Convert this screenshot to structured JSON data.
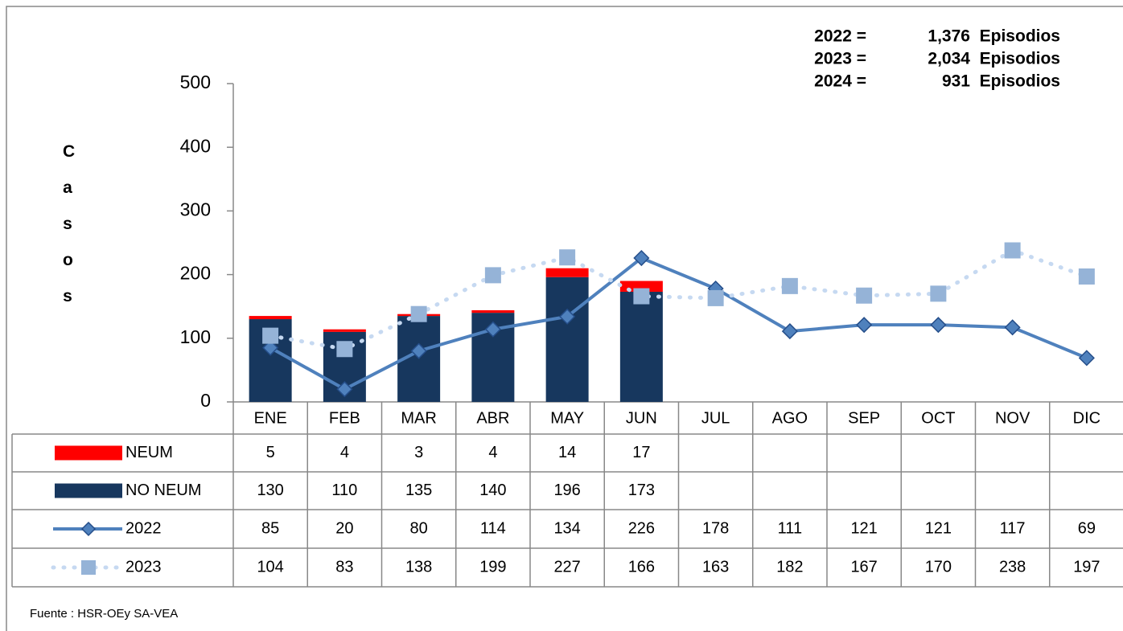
{
  "chart_data": {
    "type": "bar",
    "y_label": "Casos",
    "annotations": [
      {
        "year": "2022 =",
        "text": "1,376  Episodios"
      },
      {
        "year": "2023 =",
        "text": "2,034  Episodios"
      },
      {
        "year": "2024 =",
        "text": "931  Episodios"
      }
    ],
    "categories": [
      "ENE",
      "FEB",
      "MAR",
      "ABR",
      "MAY",
      "JUN",
      "JUL",
      "AGO",
      "SEP",
      "OCT",
      "NOV",
      "DIC"
    ],
    "series": [
      {
        "name": "NEUM",
        "type": "bar",
        "color": "#ff0000",
        "values": [
          5,
          4,
          3,
          4,
          14,
          17,
          null,
          null,
          null,
          null,
          null,
          null
        ]
      },
      {
        "name": "NO NEUM",
        "type": "bar",
        "color": "#17375e",
        "values": [
          130,
          110,
          135,
          140,
          196,
          173,
          null,
          null,
          null,
          null,
          null,
          null
        ]
      },
      {
        "name": "2022",
        "type": "line",
        "style": "solid",
        "marker": "diamond",
        "color": "#4f81bd",
        "values": [
          85,
          20,
          80,
          114,
          134,
          226,
          178,
          111,
          121,
          121,
          117,
          69
        ]
      },
      {
        "name": "2023",
        "type": "line",
        "style": "dotted",
        "marker": "square",
        "color": "#95b3d7",
        "values": [
          104,
          83,
          138,
          199,
          227,
          166,
          163,
          182,
          167,
          170,
          238,
          197
        ]
      }
    ],
    "ylim": [
      0,
      500
    ],
    "yticks": [
      0,
      100,
      200,
      300,
      400,
      500
    ],
    "source": "Fuente : HSR-OEy SA-VEA"
  }
}
